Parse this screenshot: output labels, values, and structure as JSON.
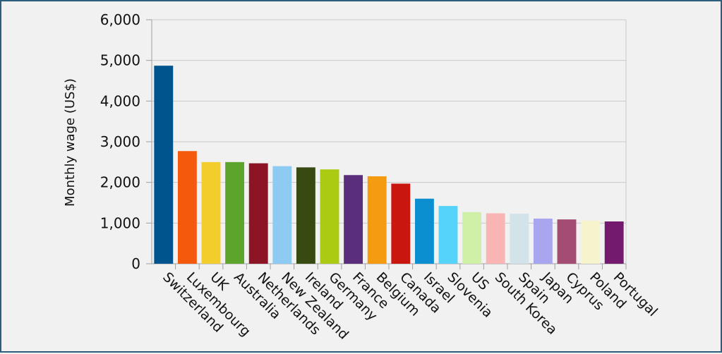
{
  "chart_data": {
    "type": "bar",
    "title": "",
    "xlabel": "",
    "ylabel": "Monthly wage (US$)",
    "ylim": [
      0,
      6000
    ],
    "yticks": [
      0,
      1000,
      2000,
      3000,
      4000,
      5000,
      6000
    ],
    "ytick_labels": [
      "0",
      "1,000",
      "2,000",
      "3,000",
      "4,000",
      "5,000",
      "6,000"
    ],
    "grid": true,
    "legend": "none",
    "categories": [
      "Switzerland",
      "Luxembourg",
      "UK",
      "Australia",
      "Netherlands",
      "New Zealand",
      "Ireland",
      "Germany",
      "France",
      "Belgium",
      "Canada",
      "Israel",
      "Slovenia",
      "US",
      "South Korea",
      "Spain",
      "Japan",
      "Cyprus",
      "Poland",
      "Portugal"
    ],
    "values": [
      4870,
      2770,
      2500,
      2500,
      2470,
      2400,
      2370,
      2320,
      2180,
      2150,
      1970,
      1600,
      1420,
      1270,
      1240,
      1230,
      1110,
      1090,
      1060,
      1040
    ],
    "colors": [
      "#00548d",
      "#f55a0c",
      "#f2cd2c",
      "#5ca42c",
      "#8b1425",
      "#8ecbf2",
      "#364a12",
      "#aacb12",
      "#5a2e7a",
      "#f59b11",
      "#c9170f",
      "#0b8fd1",
      "#55d3f8",
      "#cff0a6",
      "#f9b4b4",
      "#d2e4ea",
      "#a8a6ef",
      "#a44d72",
      "#f6f3cd",
      "#731a6e"
    ]
  }
}
